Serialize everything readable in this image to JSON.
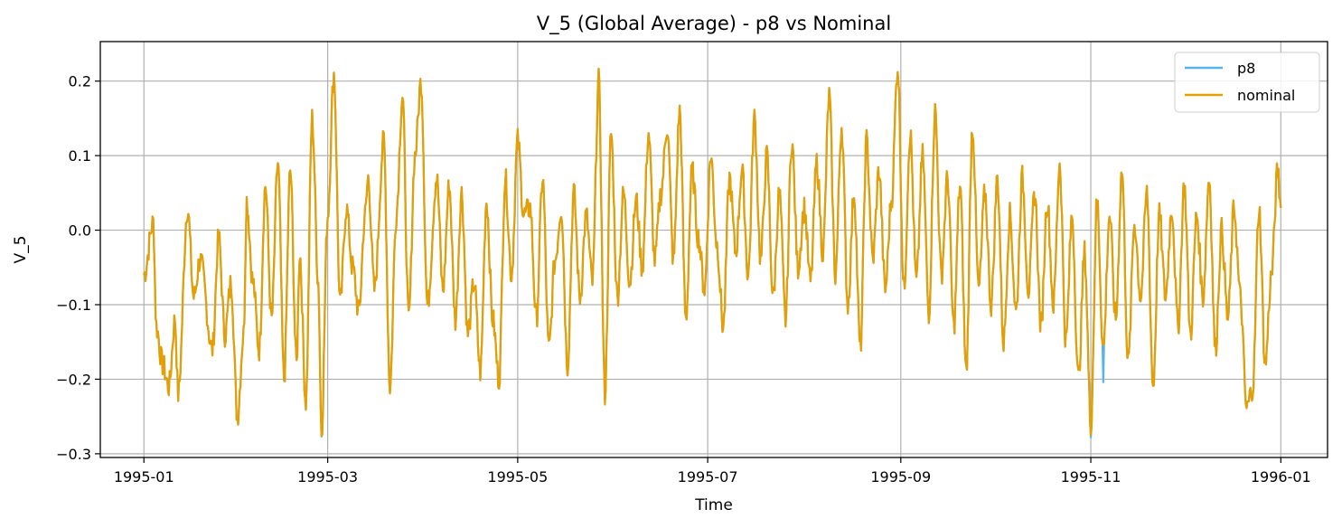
{
  "chart_data": {
    "type": "line",
    "title": "V_5 (Global Average) - p8 vs Nominal",
    "xlabel": "Time",
    "ylabel": "V_5",
    "xlim_days": [
      -14,
      380
    ],
    "ylim": [
      -0.305,
      0.253
    ],
    "grid": true,
    "legend_position": "top-right",
    "x_ticks": [
      {
        "label": "1995-01",
        "day": 0
      },
      {
        "label": "1995-03",
        "day": 59
      },
      {
        "label": "1995-05",
        "day": 120
      },
      {
        "label": "1995-07",
        "day": 181
      },
      {
        "label": "1995-09",
        "day": 243
      },
      {
        "label": "1995-11",
        "day": 304
      },
      {
        "label": "1996-01",
        "day": 365
      }
    ],
    "y_ticks": [
      {
        "label": "0.2",
        "value": 0.2
      },
      {
        "label": "0.1",
        "value": 0.1
      },
      {
        "label": "0.0",
        "value": 0.0
      },
      {
        "label": "−0.1",
        "value": -0.1
      },
      {
        "label": "−0.2",
        "value": -0.2
      },
      {
        "label": "−0.3",
        "value": -0.3
      }
    ],
    "x_start": "1995-01-01",
    "x_step_days": 0.25,
    "series": [
      {
        "name": "p8",
        "color": "#56b4e9"
      },
      {
        "name": "nominal",
        "color": "#e69f00"
      }
    ],
    "anchors": [
      [
        0,
        -0.06
      ],
      [
        3,
        0.01
      ],
      [
        4,
        -0.13
      ],
      [
        6,
        -0.18
      ],
      [
        8,
        -0.21
      ],
      [
        10,
        -0.12
      ],
      [
        11,
        -0.22
      ],
      [
        14,
        0.03
      ],
      [
        16,
        -0.09
      ],
      [
        18,
        -0.04
      ],
      [
        22,
        -0.16
      ],
      [
        24,
        -0.01
      ],
      [
        26,
        -0.14
      ],
      [
        28,
        -0.07
      ],
      [
        30,
        -0.25
      ],
      [
        32,
        -0.14
      ],
      [
        33,
        0.04
      ],
      [
        35,
        -0.07
      ],
      [
        37,
        -0.16
      ],
      [
        39,
        0.06
      ],
      [
        41,
        -0.12
      ],
      [
        43,
        0.09
      ],
      [
        45,
        -0.2
      ],
      [
        47,
        0.08
      ],
      [
        49,
        -0.18
      ],
      [
        50,
        -0.03
      ],
      [
        52,
        -0.23
      ],
      [
        54,
        0.15
      ],
      [
        56,
        -0.07
      ],
      [
        57,
        -0.27
      ],
      [
        59,
        0.02
      ],
      [
        61,
        0.21
      ],
      [
        63,
        -0.1
      ],
      [
        65,
        0.03
      ],
      [
        67,
        -0.05
      ],
      [
        69,
        -0.11
      ],
      [
        71,
        0.02
      ],
      [
        72,
        0.07
      ],
      [
        74,
        -0.08
      ],
      [
        77,
        0.12
      ],
      [
        79,
        -0.21
      ],
      [
        81,
        0.02
      ],
      [
        83,
        0.18
      ],
      [
        85,
        -0.12
      ],
      [
        87,
        0.1
      ],
      [
        89,
        0.2
      ],
      [
        91,
        -0.1
      ],
      [
        94,
        0.07
      ],
      [
        96,
        -0.08
      ],
      [
        98,
        0.06
      ],
      [
        100,
        -0.12
      ],
      [
        102,
        0.05
      ],
      [
        104,
        -0.14
      ],
      [
        106,
        -0.07
      ],
      [
        108,
        -0.19
      ],
      [
        110,
        0.04
      ],
      [
        112,
        -0.12
      ],
      [
        114,
        -0.2
      ],
      [
        116,
        0.07
      ],
      [
        118,
        -0.06
      ],
      [
        120,
        0.12
      ],
      [
        122,
        0.02
      ],
      [
        124,
        0.03
      ],
      [
        126,
        -0.12
      ],
      [
        128,
        0.07
      ],
      [
        130,
        -0.16
      ],
      [
        132,
        -0.04
      ],
      [
        134,
        0.03
      ],
      [
        136,
        -0.18
      ],
      [
        138,
        0.05
      ],
      [
        140,
        -0.09
      ],
      [
        142,
        0.02
      ],
      [
        144,
        -0.07
      ],
      [
        146,
        0.2
      ],
      [
        148,
        -0.22
      ],
      [
        150,
        0.13
      ],
      [
        152,
        -0.09
      ],
      [
        154,
        0.05
      ],
      [
        156,
        -0.07
      ],
      [
        158,
        0.04
      ],
      [
        160,
        -0.05
      ],
      [
        162,
        0.13
      ],
      [
        164,
        -0.04
      ],
      [
        166,
        0.05
      ],
      [
        168,
        0.14
      ],
      [
        170,
        -0.04
      ],
      [
        172,
        0.16
      ],
      [
        174,
        -0.12
      ],
      [
        176,
        0.08
      ],
      [
        178,
        -0.01
      ],
      [
        180,
        -0.08
      ],
      [
        182,
        0.1
      ],
      [
        184,
        -0.02
      ],
      [
        186,
        -0.13
      ],
      [
        188,
        0.07
      ],
      [
        190,
        -0.03
      ],
      [
        192,
        0.08
      ],
      [
        194,
        -0.06
      ],
      [
        196,
        0.15
      ],
      [
        198,
        -0.04
      ],
      [
        200,
        0.1
      ],
      [
        202,
        -0.09
      ],
      [
        204,
        0.05
      ],
      [
        206,
        -0.12
      ],
      [
        208,
        0.12
      ],
      [
        210,
        -0.05
      ],
      [
        212,
        0.03
      ],
      [
        214,
        -0.07
      ],
      [
        216,
        0.09
      ],
      [
        218,
        -0.03
      ],
      [
        220,
        0.18
      ],
      [
        222,
        -0.06
      ],
      [
        224,
        0.14
      ],
      [
        226,
        -0.1
      ],
      [
        228,
        0.05
      ],
      [
        230,
        -0.16
      ],
      [
        232,
        0.12
      ],
      [
        234,
        -0.04
      ],
      [
        236,
        0.08
      ],
      [
        238,
        -0.08
      ],
      [
        240,
        0.04
      ],
      [
        242,
        0.22
      ],
      [
        244,
        -0.08
      ],
      [
        246,
        0.13
      ],
      [
        248,
        -0.07
      ],
      [
        250,
        0.1
      ],
      [
        252,
        -0.11
      ],
      [
        254,
        0.16
      ],
      [
        256,
        -0.06
      ],
      [
        258,
        0.07
      ],
      [
        260,
        -0.13
      ],
      [
        262,
        0.06
      ],
      [
        264,
        -0.19
      ],
      [
        266,
        0.14
      ],
      [
        268,
        -0.08
      ],
      [
        270,
        0.05
      ],
      [
        272,
        -0.1
      ],
      [
        274,
        0.07
      ],
      [
        276,
        -0.15
      ],
      [
        278,
        0.02
      ],
      [
        280,
        -0.11
      ],
      [
        282,
        0.07
      ],
      [
        284,
        -0.08
      ],
      [
        286,
        0.05
      ],
      [
        288,
        -0.13
      ],
      [
        290,
        0.04
      ],
      [
        292,
        -0.1
      ],
      [
        294,
        0.09
      ],
      [
        296,
        -0.15
      ],
      [
        298,
        0.02
      ],
      [
        300,
        -0.2
      ],
      [
        302,
        -0.03
      ],
      [
        304,
        -0.26
      ],
      [
        306,
        0.04
      ],
      [
        308,
        -0.16
      ],
      [
        310,
        0.02
      ],
      [
        312,
        -0.12
      ],
      [
        314,
        0.08
      ],
      [
        316,
        -0.18
      ],
      [
        318,
        0.01
      ],
      [
        320,
        -0.09
      ],
      [
        322,
        0.05
      ],
      [
        324,
        -0.21
      ],
      [
        326,
        0.02
      ],
      [
        328,
        -0.09
      ],
      [
        330,
        0.03
      ],
      [
        332,
        -0.13
      ],
      [
        334,
        0.06
      ],
      [
        336,
        -0.14
      ],
      [
        338,
        0.02
      ],
      [
        340,
        -0.09
      ],
      [
        342,
        0.07
      ],
      [
        344,
        -0.16
      ],
      [
        346,
        0.0
      ],
      [
        348,
        -0.12
      ],
      [
        350,
        0.03
      ],
      [
        352,
        -0.09
      ],
      [
        354,
        -0.24
      ],
      [
        356,
        -0.21
      ],
      [
        358,
        0.03
      ],
      [
        360,
        -0.18
      ],
      [
        362,
        -0.06
      ],
      [
        364,
        0.08
      ],
      [
        365,
        0.03
      ]
    ],
    "p8_divergence": [
      [
        57,
        -0.277
      ],
      [
        148,
        -0.229
      ],
      [
        308,
        -0.204
      ],
      [
        304,
        -0.278
      ]
    ]
  }
}
